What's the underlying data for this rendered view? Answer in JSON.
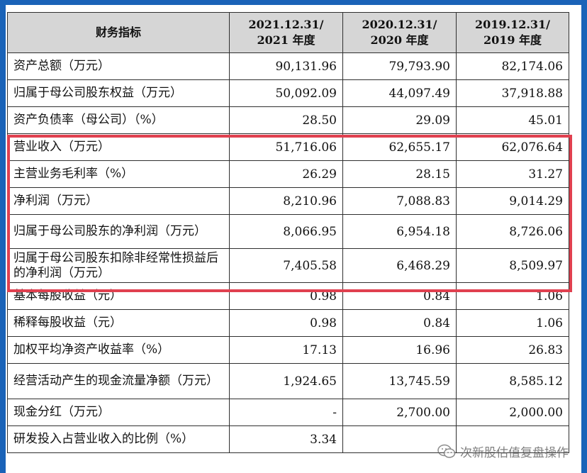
{
  "table": {
    "headers": [
      "财务指标",
      "2021.12.31/\n2021 年度",
      "2020.12.31/\n2020 年度",
      "2019.12.31/\n2019 年度"
    ],
    "header_lines": [
      [
        "财务指标"
      ],
      [
        "2021.12.31/",
        "2021 年度"
      ],
      [
        "2020.12.31/",
        "2020 年度"
      ],
      [
        "2019.12.31/",
        "2019 年度"
      ]
    ],
    "rows": [
      {
        "label": "资产总额（万元）",
        "values": [
          "90,131.96",
          "79,793.90",
          "82,174.06"
        ]
      },
      {
        "label": "归属于母公司股东权益（万元）",
        "values": [
          "50,092.09",
          "44,097.49",
          "37,918.88"
        ]
      },
      {
        "label": "资产负债率（母公司）（%）",
        "values": [
          "28.50",
          "29.09",
          "45.01"
        ]
      },
      {
        "label": "营业收入（万元）",
        "values": [
          "51,716.06",
          "62,655.17",
          "62,076.64"
        ]
      },
      {
        "label": "主营业务毛利率（%）",
        "values": [
          "26.29",
          "28.15",
          "31.27"
        ]
      },
      {
        "label": "净利润（万元）",
        "values": [
          "8,210.96",
          "7,088.83",
          "9,014.29"
        ]
      },
      {
        "label": "归属于母公司股东的净利润（万元）",
        "values": [
          "8,066.95",
          "6,954.18",
          "8,726.06"
        ]
      },
      {
        "label": "归属于母公司股东扣除非经常性损益后的净利润（万元）",
        "values": [
          "7,405.58",
          "6,468.29",
          "8,509.97"
        ]
      },
      {
        "label": "基本每股收益（元）",
        "values": [
          "0.98",
          "0.84",
          "1.06"
        ]
      },
      {
        "label": "稀释每股收益（元）",
        "values": [
          "0.98",
          "0.84",
          "1.06"
        ]
      },
      {
        "label": "加权平均净资产收益率（%）",
        "values": [
          "17.13",
          "16.96",
          "26.83"
        ]
      },
      {
        "label": "经营活动产生的现金流量净额（万元）",
        "values": [
          "1,924.65",
          "13,745.59",
          "8,585.12"
        ]
      },
      {
        "label": "现金分红（万元）",
        "values": [
          "-",
          "2,700.00",
          "2,000.00"
        ]
      },
      {
        "label": "研发投入占营业收入的比例（%）",
        "values": [
          "3.34",
          "",
          ""
        ]
      }
    ]
  },
  "highlight": {
    "color": "#e0404f",
    "rows": [
      "营业收入（万元）",
      "归属于母公司股东扣除非经常性损益后的净利润（万元）"
    ]
  },
  "watermark": {
    "text": "次新股估值复盘操作",
    "icon": "wechat-icon"
  },
  "colors": {
    "background": "#1a63b8",
    "header_fill": "#d6d6d6",
    "highlight_border": "#e0404f"
  }
}
